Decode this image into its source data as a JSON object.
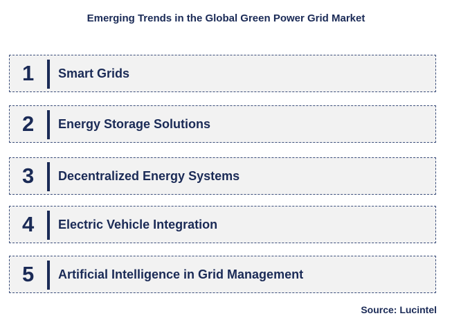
{
  "title": "Emerging Trends in the Global Green Power Grid Market",
  "trends": [
    {
      "number": "1",
      "label": "Smart Grids"
    },
    {
      "number": "2",
      "label": "Energy Storage Solutions"
    },
    {
      "number": "3",
      "label": "Decentralized Energy Systems"
    },
    {
      "number": "4",
      "label": "Electric Vehicle Integration"
    },
    {
      "number": "5",
      "label": "Artificial Intelligence in Grid Management"
    }
  ],
  "source": "Source: Lucintel",
  "colors": {
    "text": "#1a2a56",
    "box_fill": "#f2f2f2",
    "box_border": "#3a4d7a"
  }
}
